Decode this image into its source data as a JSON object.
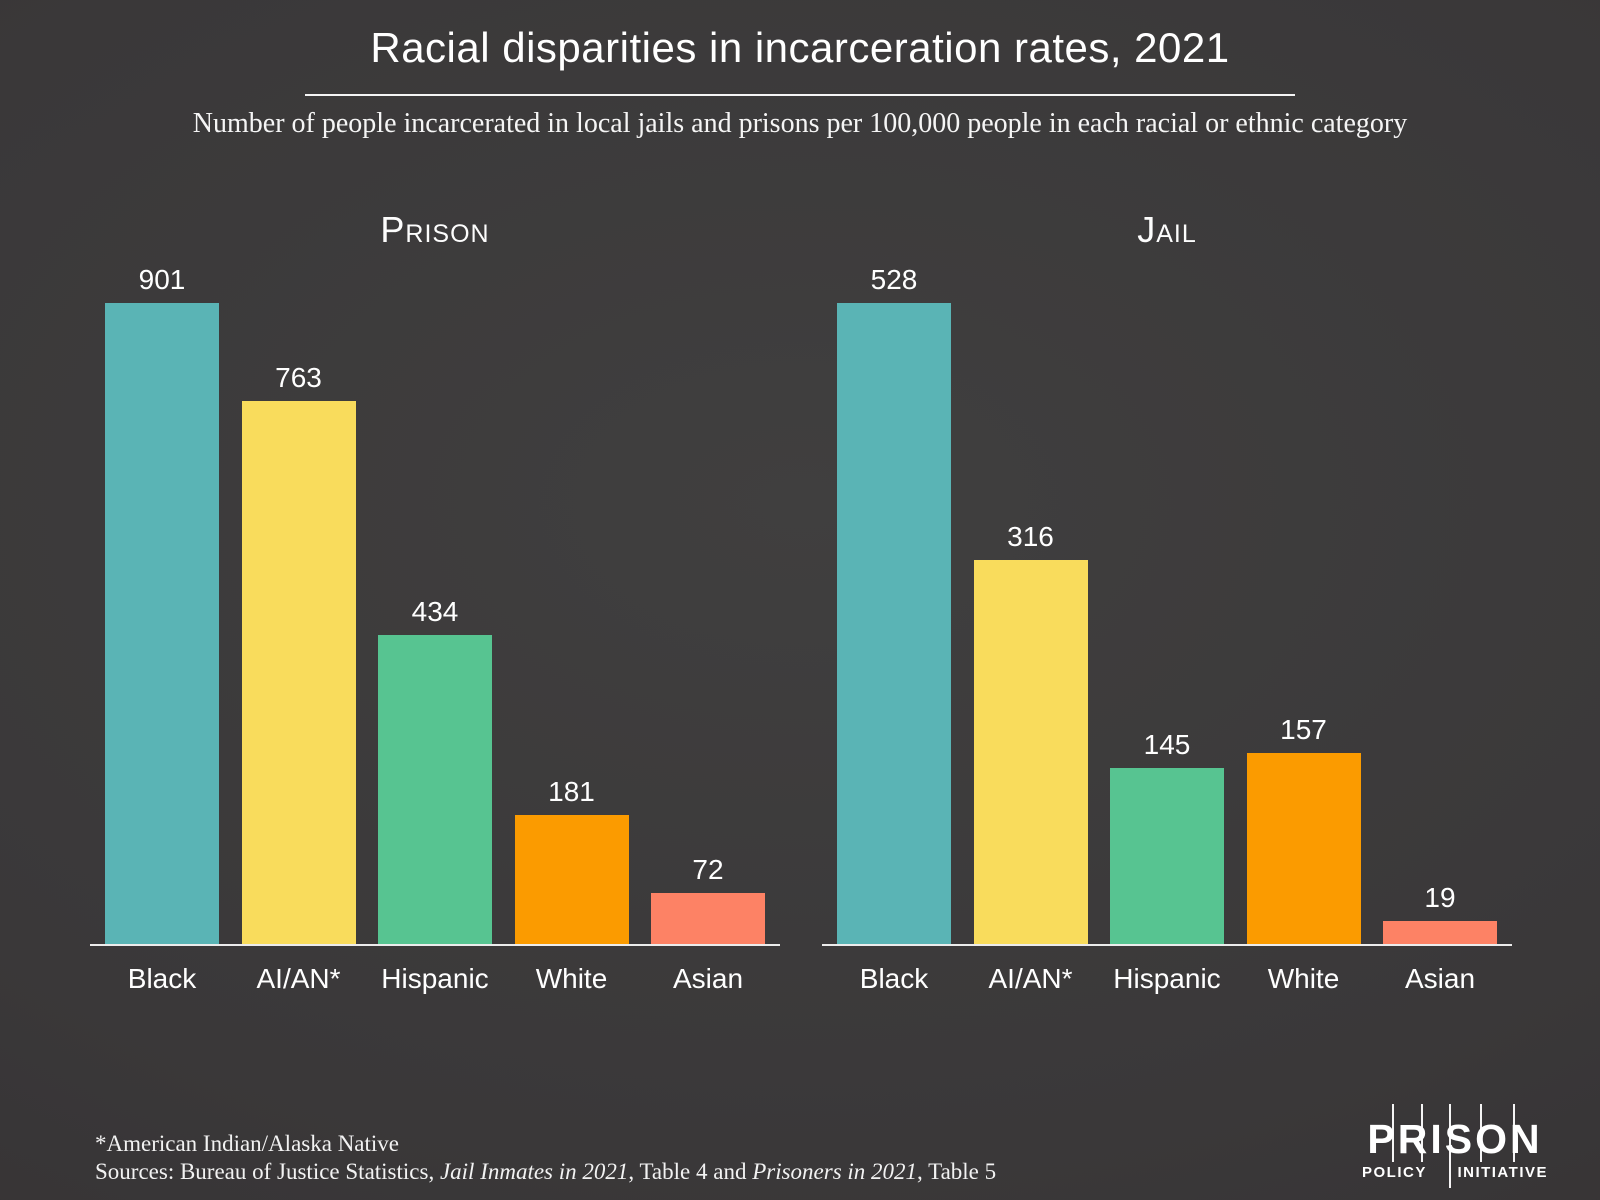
{
  "header": {
    "title": "Racial disparities in incarceration rates, 2021",
    "subtitle": "Number of people incarcerated in local jails and prisons per 100,000 people in each racial or ethnic category"
  },
  "chart_data": [
    {
      "type": "bar",
      "title": "Prison",
      "categories": [
        "Black",
        "AI/AN*",
        "Hispanic",
        "White",
        "Asian"
      ],
      "values": [
        901,
        763,
        434,
        181,
        72
      ],
      "bar_colors": [
        "#5ab4b5",
        "#f9dc5c",
        "#57c491",
        "#fb9b00",
        "#fd8265"
      ],
      "xlabel": "",
      "ylabel": "",
      "ylim": [
        0,
        901
      ],
      "grid": false,
      "value_labels_shown": true,
      "legend": "none"
    },
    {
      "type": "bar",
      "title": "Jail",
      "categories": [
        "Black",
        "AI/AN*",
        "Hispanic",
        "White",
        "Asian"
      ],
      "values": [
        528,
        316,
        145,
        157,
        19
      ],
      "bar_colors": [
        "#5ab4b5",
        "#f9dc5c",
        "#57c491",
        "#fb9b00",
        "#fd8265"
      ],
      "xlabel": "",
      "ylabel": "",
      "ylim": [
        0,
        528
      ],
      "grid": false,
      "value_labels_shown": true,
      "legend": "none"
    }
  ],
  "footer": {
    "footnote": "*American Indian/Alaska Native",
    "sources_parts": [
      {
        "text": "Sources: Bureau of Justice Statistics, ",
        "italic": false
      },
      {
        "text": "Jail Inmates in 2021",
        "italic": true
      },
      {
        "text": ", Table 4 and ",
        "italic": false
      },
      {
        "text": "Prisoners in 2021",
        "italic": true
      },
      {
        "text": ", Table 5",
        "italic": false
      }
    ]
  },
  "logo": {
    "line1": "PRISON",
    "line2_left": "POLICY",
    "line2_right": "INITIATIVE"
  },
  "colors": {
    "background_center": "#403f3f",
    "background_edge": "#332f31",
    "text": "#ffffff",
    "axis": "#ececec",
    "teal": "#5ab4b5",
    "yellow": "#f9dc5c",
    "green": "#57c491",
    "orange": "#fb9b00",
    "salmon": "#fd8265"
  }
}
